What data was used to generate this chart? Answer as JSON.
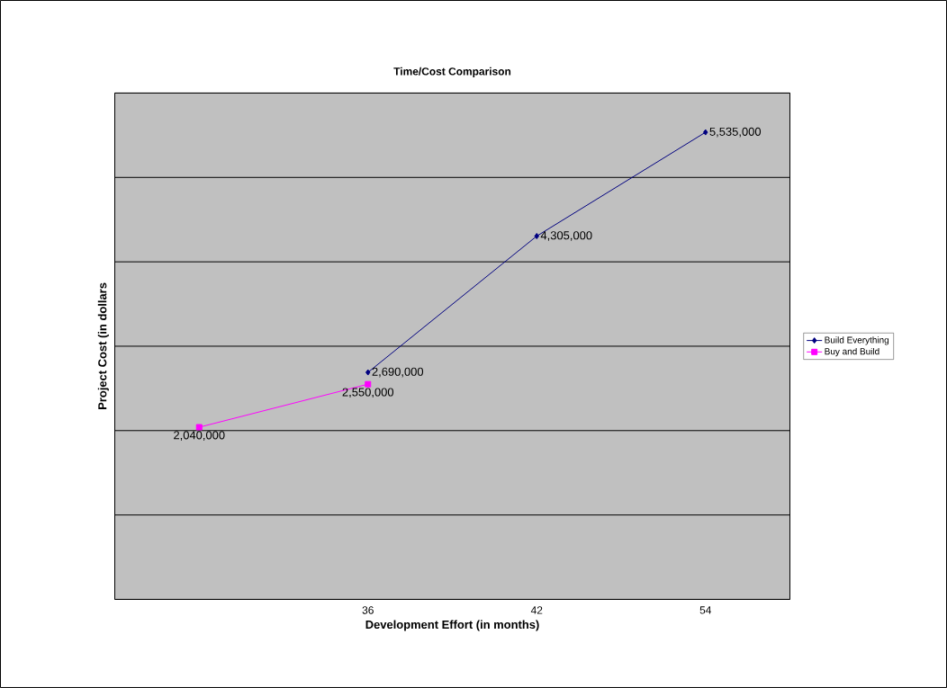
{
  "chart_data": {
    "type": "line",
    "title": "Time/Cost Comparison",
    "xlabel": "Development Effort (in months)",
    "ylabel": "Project Cost (in dollars",
    "categories": [
      null,
      "36",
      "42",
      "54"
    ],
    "series": [
      {
        "name": "Build Everything",
        "color": "#000080",
        "marker": "diamond",
        "line_style": "solid",
        "values": [
          null,
          2690000,
          4305000,
          5535000
        ],
        "value_labels": [
          null,
          "2,690,000",
          "4,305,000",
          "5,535,000"
        ]
      },
      {
        "name": "Buy and Build",
        "color": "#ff00ff",
        "marker": "square",
        "line_style": "solid",
        "values": [
          2040000,
          2550000,
          null,
          null
        ],
        "value_labels": [
          "2,040,000",
          "2,550,000",
          null,
          null
        ]
      }
    ],
    "ylim": [
      0,
      6000000
    ],
    "yticks": [
      {
        "value": 0,
        "label": null
      },
      {
        "value": 1000000,
        "label": null
      },
      {
        "value": 2000000,
        "label": null
      },
      {
        "value": 3000000,
        "label": null
      },
      {
        "value": 4000000,
        "label": null
      },
      {
        "value": 5000000,
        "label": null
      },
      {
        "value": 6000000,
        "label": null
      }
    ],
    "tick_labels": "x",
    "grid": "y",
    "legend": "right"
  }
}
